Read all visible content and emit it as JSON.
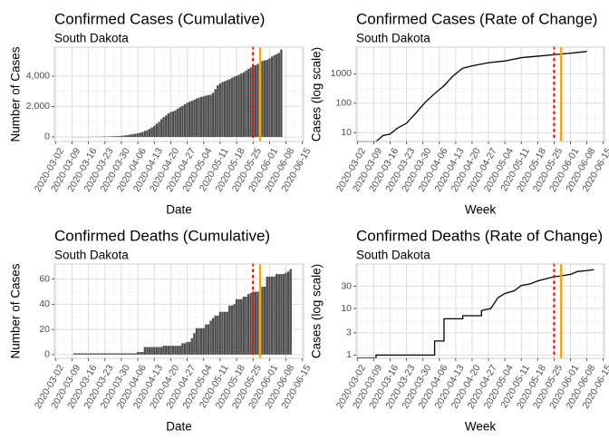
{
  "chart_data": [
    {
      "type": "bar",
      "title": "Confirmed Cases (Cumulative)",
      "subtitle": "South Dakota",
      "xlabel": "Date",
      "ylabel": "Number of Cases",
      "x_ticks": [
        "2020-03-02",
        "2020-03-09",
        "2020-03-16",
        "2020-03-23",
        "2020-03-30",
        "2020-04-06",
        "2020-04-13",
        "2020-04-20",
        "2020-04-27",
        "2020-05-04",
        "2020-05-11",
        "2020-05-18",
        "2020-05-25",
        "2020-06-01",
        "2020-06-08",
        "2020-06-15"
      ],
      "y_ticks": [
        0,
        2000,
        4000
      ],
      "y_tick_labels": [
        "0",
        "2,000",
        "4,000"
      ],
      "ylim": [
        -300,
        5900
      ],
      "x_start": "2020-03-10",
      "values": [
        0,
        0,
        0,
        0,
        0,
        0,
        8,
        9,
        10,
        11,
        14,
        14,
        21,
        21,
        28,
        30,
        41,
        46,
        46,
        58,
        68,
        90,
        108,
        129,
        165,
        187,
        212,
        240,
        288,
        320,
        393,
        447,
        536,
        626,
        730,
        868,
        988,
        1168,
        1311,
        1411,
        1542,
        1635,
        1685,
        1755,
        1858,
        1956,
        2040,
        2147,
        2245,
        2313,
        2373,
        2449,
        2525,
        2588,
        2631,
        2668,
        2721,
        2749,
        2779,
        2905,
        3144,
        3393,
        3517,
        3614,
        3663,
        3732,
        3792,
        3887,
        3959,
        4027,
        4085,
        4177,
        4250,
        4356,
        4468,
        4563,
        4653,
        4710,
        4793,
        4866,
        4993,
        5034,
        5067,
        5162,
        5277,
        5367,
        5438,
        5523,
        5742
      ],
      "grid": true,
      "reference_lines": [
        {
          "date": "2020-05-25",
          "style": "dotted",
          "color": "#ff0000"
        },
        {
          "date": "2020-05-28",
          "style": "solid",
          "color": "#ffa500"
        }
      ]
    },
    {
      "type": "line",
      "title": "Confirmed Cases (Rate of Change)",
      "subtitle": "South Dakota",
      "xlabel": "Week",
      "ylabel": "Cases (log scale)",
      "y_scale": "log",
      "x_ticks": [
        "2020-03-02",
        "2020-03-09",
        "2020-03-16",
        "2020-03-23",
        "2020-03-30",
        "2020-04-06",
        "2020-04-13",
        "2020-04-20",
        "2020-04-27",
        "2020-05-04",
        "2020-05-11",
        "2020-05-18",
        "2020-05-25",
        "2020-06-01",
        "2020-06-08",
        "2020-06-15"
      ],
      "y_ticks": [
        10,
        100,
        1000
      ],
      "y_tick_labels": [
        "10",
        "100",
        "1000"
      ],
      "ylim": [
        5,
        8000
      ],
      "points": [
        {
          "x": "2020-03-02",
          "y": 5
        },
        {
          "x": "2020-03-10",
          "y": 5
        },
        {
          "x": "2020-03-13",
          "y": 8
        },
        {
          "x": "2020-03-16",
          "y": 9
        },
        {
          "x": "2020-03-19",
          "y": 14
        },
        {
          "x": "2020-03-23",
          "y": 21
        },
        {
          "x": "2020-03-27",
          "y": 46
        },
        {
          "x": "2020-03-31",
          "y": 108
        },
        {
          "x": "2020-04-04",
          "y": 212
        },
        {
          "x": "2020-04-08",
          "y": 393
        },
        {
          "x": "2020-04-12",
          "y": 868
        },
        {
          "x": "2020-04-16",
          "y": 1542
        },
        {
          "x": "2020-04-20",
          "y": 1858
        },
        {
          "x": "2020-04-27",
          "y": 2373
        },
        {
          "x": "2020-05-04",
          "y": 2721
        },
        {
          "x": "2020-05-11",
          "y": 3517
        },
        {
          "x": "2020-05-18",
          "y": 3959
        },
        {
          "x": "2020-05-25",
          "y": 4468
        },
        {
          "x": "2020-06-01",
          "y": 4993
        },
        {
          "x": "2020-06-08",
          "y": 5742
        }
      ],
      "grid": true,
      "reference_lines": [
        {
          "date": "2020-05-25",
          "style": "dotted",
          "color": "#ff0000"
        },
        {
          "date": "2020-05-28",
          "style": "solid",
          "color": "#ffa500"
        }
      ]
    },
    {
      "type": "bar",
      "title": "Confirmed Deaths (Cumulative)",
      "subtitle": "South Dakota",
      "xlabel": "Date",
      "ylabel": "Number of Cases",
      "x_ticks": [
        "2020-03-02",
        "2020-03-09",
        "2020-03-16",
        "2020-03-23",
        "2020-03-30",
        "2020-04-06",
        "2020-04-13",
        "2020-04-20",
        "2020-04-27",
        "2020-05-04",
        "2020-05-11",
        "2020-05-18",
        "2020-05-25",
        "2020-06-01",
        "2020-06-08",
        "2020-06-15"
      ],
      "y_ticks": [
        0,
        20,
        40,
        60
      ],
      "y_tick_labels": [
        "0",
        "20",
        "40",
        "60"
      ],
      "ylim": [
        -3,
        72
      ],
      "x_start": "2020-03-10",
      "values": [
        1,
        1,
        1,
        1,
        1,
        1,
        1,
        1,
        1,
        1,
        1,
        1,
        1,
        1,
        1,
        1,
        1,
        1,
        1,
        1,
        1,
        1,
        1,
        1,
        1,
        1,
        1,
        2,
        2,
        2,
        6,
        6,
        6,
        6,
        6,
        6,
        6,
        6,
        7,
        7,
        7,
        7,
        7,
        7,
        7,
        7,
        9,
        9,
        10,
        10,
        13,
        17,
        21,
        21,
        21,
        21,
        24,
        24,
        27,
        29,
        31,
        31,
        34,
        34,
        34,
        34,
        39,
        39,
        40,
        44,
        44,
        44,
        46,
        46,
        48,
        49,
        50,
        50,
        50,
        50,
        54,
        54,
        62,
        62,
        62,
        62,
        64,
        64,
        64,
        64,
        65,
        66,
        68
      ],
      "grid": true,
      "reference_lines": [
        {
          "date": "2020-05-25",
          "style": "dotted",
          "color": "#ff0000"
        },
        {
          "date": "2020-05-28",
          "style": "solid",
          "color": "#ffa500"
        }
      ]
    },
    {
      "type": "line",
      "title": "Confirmed Deaths (Rate of Change)",
      "subtitle": "South Dakota",
      "xlabel": "Week",
      "ylabel": "Cases  (log scale)",
      "y_scale": "log",
      "x_ticks": [
        "2020-03-02",
        "2020-03-09",
        "2020-03-16",
        "2020-03-23",
        "2020-03-30",
        "2020-04-06",
        "2020-04-13",
        "2020-04-20",
        "2020-04-27",
        "2020-05-04",
        "2020-05-11",
        "2020-05-18",
        "2020-05-25",
        "2020-06-01",
        "2020-06-08",
        "2020-06-15"
      ],
      "y_ticks": [
        1,
        3,
        10,
        30
      ],
      "y_tick_labels": [
        "1",
        "3",
        "10",
        "30"
      ],
      "ylim": [
        0.85,
        90
      ],
      "points": [
        {
          "x": "2020-03-02",
          "y": 0.87
        },
        {
          "x": "2020-03-10",
          "y": 0.87
        },
        {
          "x": "2020-03-10",
          "y": 1
        },
        {
          "x": "2020-04-04",
          "y": 1
        },
        {
          "x": "2020-04-04",
          "y": 2
        },
        {
          "x": "2020-04-08",
          "y": 2
        },
        {
          "x": "2020-04-08",
          "y": 6
        },
        {
          "x": "2020-04-16",
          "y": 6
        },
        {
          "x": "2020-04-16",
          "y": 7
        },
        {
          "x": "2020-04-24",
          "y": 7
        },
        {
          "x": "2020-04-24",
          "y": 9
        },
        {
          "x": "2020-04-28",
          "y": 10
        },
        {
          "x": "2020-05-01",
          "y": 17
        },
        {
          "x": "2020-05-04",
          "y": 21
        },
        {
          "x": "2020-05-08",
          "y": 24
        },
        {
          "x": "2020-05-11",
          "y": 31
        },
        {
          "x": "2020-05-15",
          "y": 34
        },
        {
          "x": "2020-05-18",
          "y": 39
        },
        {
          "x": "2020-05-22",
          "y": 44
        },
        {
          "x": "2020-05-25",
          "y": 48
        },
        {
          "x": "2020-05-28",
          "y": 50
        },
        {
          "x": "2020-06-01",
          "y": 54
        },
        {
          "x": "2020-06-04",
          "y": 62
        },
        {
          "x": "2020-06-08",
          "y": 65
        },
        {
          "x": "2020-06-11",
          "y": 68
        }
      ],
      "grid": true,
      "reference_lines": [
        {
          "date": "2020-05-25",
          "style": "dotted",
          "color": "#ff0000"
        },
        {
          "date": "2020-05-28",
          "style": "solid",
          "color": "#ffa500"
        }
      ]
    }
  ],
  "colors": {
    "bar": "#4d4d4d",
    "line": "#000000",
    "grid_major": "#dedede",
    "grid_minor": "#f0f0f0",
    "panel_border": "#cfcfcf",
    "axis_text": "#4d4d4d",
    "title": "#000000",
    "dotted_line": "#ff0000",
    "solid_line": "#ffa500"
  }
}
